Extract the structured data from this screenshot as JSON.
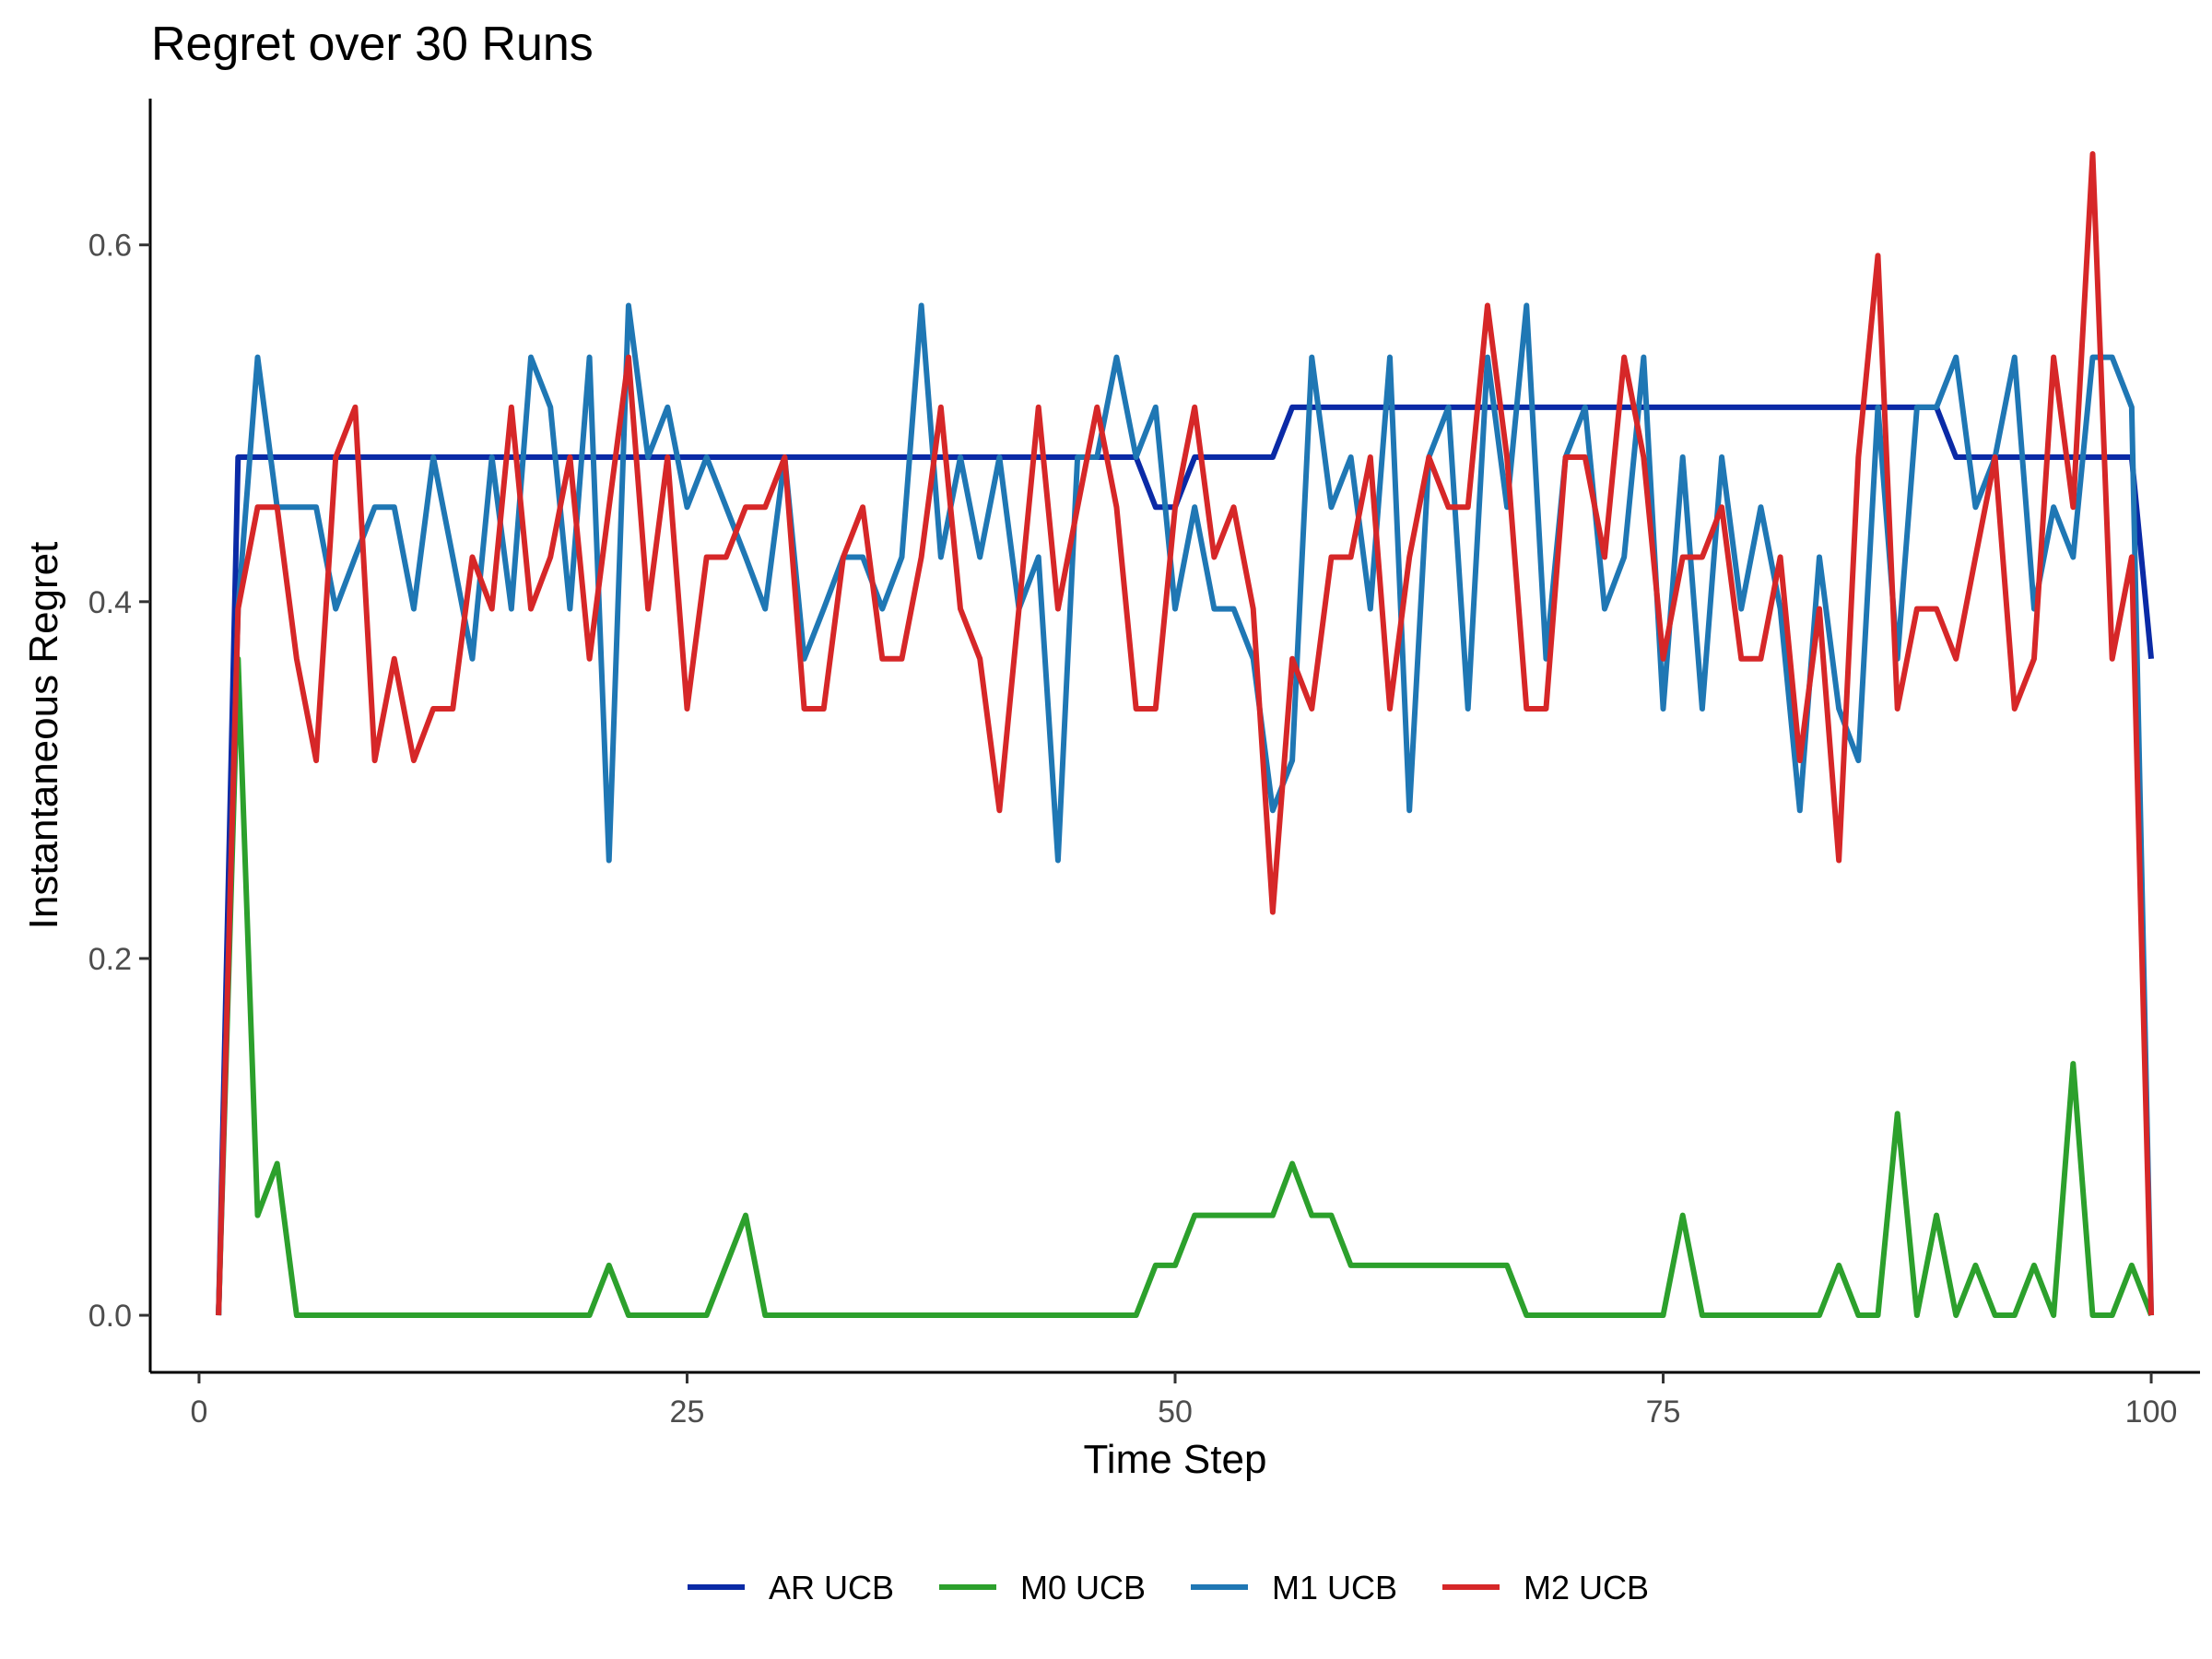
{
  "chart_data": {
    "type": "line",
    "title": "Regret over 30 Runs",
    "xlabel": "Time Step",
    "ylabel": "Instantaneous Regret",
    "xlim": [
      -2.5,
      102.5
    ],
    "ylim": [
      -0.032,
      0.682
    ],
    "xticks": [
      0,
      25,
      50,
      75,
      100
    ],
    "yticks": [
      0.0,
      0.2,
      0.4,
      0.6
    ],
    "xtick_labels": [
      "0",
      "25",
      "50",
      "75",
      "100"
    ],
    "ytick_labels": [
      "0.0",
      "0.2",
      "0.4",
      "0.6"
    ],
    "grid": false,
    "legend_position": "bottom",
    "x": [
      1,
      2,
      3,
      4,
      5,
      6,
      7,
      8,
      9,
      10,
      11,
      12,
      13,
      14,
      15,
      16,
      17,
      18,
      19,
      20,
      21,
      22,
      23,
      24,
      25,
      26,
      27,
      28,
      29,
      30,
      31,
      32,
      33,
      34,
      35,
      36,
      37,
      38,
      39,
      40,
      41,
      42,
      43,
      44,
      45,
      46,
      47,
      48,
      49,
      50,
      51,
      52,
      53,
      54,
      55,
      56,
      57,
      58,
      59,
      60,
      61,
      62,
      63,
      64,
      65,
      66,
      67,
      68,
      69,
      70,
      71,
      72,
      73,
      74,
      75,
      76,
      77,
      78,
      79,
      80,
      81,
      82,
      83,
      84,
      85,
      86,
      87,
      88,
      89,
      90,
      91,
      92,
      93,
      94,
      95,
      96,
      97,
      98,
      99,
      100
    ],
    "series": [
      {
        "name": "AR UCB",
        "color": "#0a2aa6",
        "values": [
          0,
          0.481,
          0.481,
          0.481,
          0.481,
          0.481,
          0.481,
          0.481,
          0.481,
          0.481,
          0.481,
          0.481,
          0.481,
          0.481,
          0.481,
          0.481,
          0.481,
          0.481,
          0.481,
          0.481,
          0.481,
          0.481,
          0.481,
          0.481,
          0.481,
          0.481,
          0.481,
          0.481,
          0.481,
          0.481,
          0.481,
          0.481,
          0.481,
          0.481,
          0.481,
          0.481,
          0.481,
          0.481,
          0.481,
          0.481,
          0.481,
          0.481,
          0.481,
          0.481,
          0.481,
          0.481,
          0.481,
          0.481,
          0.453,
          0.453,
          0.481,
          0.481,
          0.481,
          0.481,
          0.481,
          0.509,
          0.509,
          0.509,
          0.509,
          0.509,
          0.509,
          0.509,
          0.509,
          0.509,
          0.509,
          0.509,
          0.509,
          0.509,
          0.509,
          0.509,
          0.509,
          0.509,
          0.509,
          0.509,
          0.509,
          0.509,
          0.509,
          0.509,
          0.509,
          0.509,
          0.509,
          0.509,
          0.509,
          0.509,
          0.509,
          0.509,
          0.509,
          0.509,
          0.509,
          0.481,
          0.481,
          0.481,
          0.481,
          0.481,
          0.481,
          0.481,
          0.481,
          0.481,
          0.481,
          0.368
        ]
      },
      {
        "name": "M0 UCB",
        "color": "#2ca02c",
        "values": [
          0,
          0.368,
          0.056,
          0.085,
          0,
          0,
          0,
          0,
          0,
          0,
          0,
          0,
          0,
          0,
          0,
          0,
          0,
          0,
          0,
          0,
          0.028,
          0,
          0,
          0,
          0,
          0,
          0.028,
          0.056,
          0,
          0,
          0,
          0,
          0,
          0,
          0,
          0,
          0,
          0,
          0,
          0,
          0,
          0,
          0,
          0,
          0,
          0,
          0,
          0,
          0.028,
          0.028,
          0.056,
          0.056,
          0.056,
          0.056,
          0.056,
          0.085,
          0.056,
          0.056,
          0.028,
          0.028,
          0.028,
          0.028,
          0.028,
          0.028,
          0.028,
          0.028,
          0.028,
          0,
          0,
          0,
          0,
          0,
          0,
          0,
          0,
          0.056,
          0,
          0,
          0,
          0,
          0,
          0,
          0,
          0.028,
          0,
          0,
          0.113,
          0,
          0.056,
          0,
          0.028,
          0,
          0,
          0.028,
          0,
          0.141,
          0,
          0,
          0.028,
          0
        ]
      },
      {
        "name": "M1 UCB",
        "color": "#1f77b4",
        "values": [
          0,
          0.396,
          0.537,
          0.453,
          0.453,
          0.453,
          0.396,
          0.425,
          0.453,
          0.453,
          0.396,
          0.481,
          0.425,
          0.368,
          0.481,
          0.396,
          0.537,
          0.509,
          0.396,
          0.537,
          0.255,
          0.566,
          0.481,
          0.509,
          0.453,
          0.481,
          0.453,
          0.425,
          0.396,
          0.481,
          0.368,
          0.396,
          0.425,
          0.425,
          0.396,
          0.425,
          0.566,
          0.425,
          0.481,
          0.425,
          0.481,
          0.396,
          0.425,
          0.255,
          0.481,
          0.481,
          0.537,
          0.481,
          0.509,
          0.396,
          0.453,
          0.396,
          0.396,
          0.368,
          0.283,
          0.311,
          0.537,
          0.453,
          0.481,
          0.396,
          0.537,
          0.283,
          0.481,
          0.509,
          0.34,
          0.537,
          0.453,
          0.566,
          0.368,
          0.481,
          0.509,
          0.396,
          0.425,
          0.537,
          0.34,
          0.481,
          0.34,
          0.481,
          0.396,
          0.453,
          0.396,
          0.283,
          0.425,
          0.34,
          0.311,
          0.509,
          0.368,
          0.509,
          0.509,
          0.537,
          0.453,
          0.481,
          0.537,
          0.396,
          0.453,
          0.425,
          0.537,
          0.537,
          0.509,
          0
        ]
      },
      {
        "name": "M2 UCB",
        "color": "#d62728",
        "values": [
          0,
          0.396,
          0.453,
          0.453,
          0.368,
          0.311,
          0.481,
          0.509,
          0.311,
          0.368,
          0.311,
          0.34,
          0.34,
          0.425,
          0.396,
          0.509,
          0.396,
          0.425,
          0.481,
          0.368,
          0.453,
          0.537,
          0.396,
          0.481,
          0.34,
          0.425,
          0.425,
          0.453,
          0.453,
          0.481,
          0.34,
          0.34,
          0.425,
          0.453,
          0.368,
          0.368,
          0.425,
          0.509,
          0.396,
          0.368,
          0.283,
          0.396,
          0.509,
          0.396,
          0.453,
          0.509,
          0.453,
          0.34,
          0.34,
          0.453,
          0.509,
          0.425,
          0.453,
          0.396,
          0.226,
          0.368,
          0.34,
          0.425,
          0.425,
          0.481,
          0.34,
          0.425,
          0.481,
          0.453,
          0.453,
          0.566,
          0.481,
          0.34,
          0.34,
          0.481,
          0.481,
          0.425,
          0.537,
          0.481,
          0.368,
          0.425,
          0.425,
          0.453,
          0.368,
          0.368,
          0.425,
          0.311,
          0.396,
          0.255,
          0.481,
          0.594,
          0.34,
          0.396,
          0.396,
          0.368,
          0.425,
          0.481,
          0.34,
          0.368,
          0.537,
          0.453,
          0.651,
          0.368,
          0.425,
          0
        ]
      }
    ]
  }
}
